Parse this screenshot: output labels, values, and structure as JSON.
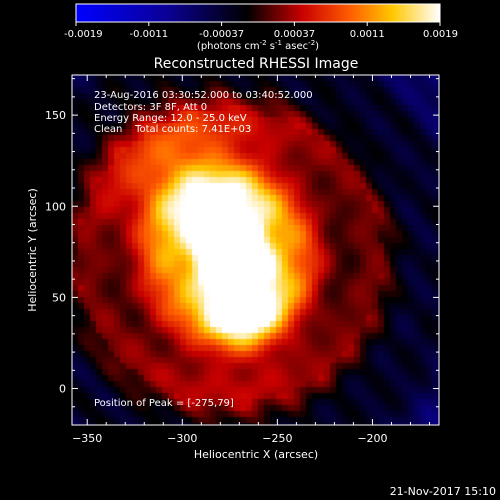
{
  "chart_data": {
    "type": "heatmap",
    "title": "Reconstructed RHESSI Image",
    "xlabel": "Heliocentric X (arcsec)",
    "ylabel": "Heliocentric Y (arcsec)",
    "xlim": [
      -358,
      -165
    ],
    "ylim": [
      -20,
      172
    ],
    "x_ticks": [
      -350,
      -300,
      -250,
      -200
    ],
    "y_ticks": [
      0,
      50,
      100,
      150
    ],
    "colorbar": {
      "ticks": [
        "-0.0019",
        "-0.0011",
        "-0.00037",
        "0.00037",
        "0.0011",
        "0.0019"
      ],
      "unit_label": "(photons cm",
      "unit_sup1": "-2",
      "unit_mid1": " s",
      "unit_sup2": "-1",
      "unit_mid2": " asec",
      "unit_sup3": "-2",
      "unit_end": ")",
      "min": -0.0019,
      "max": 0.0019
    },
    "annotations": {
      "time_range": "23-Aug-2016 03:30:52.000 to 03:40:52.000",
      "detectors": "Detectors: 3F 8F, Att 0",
      "energy_range": "Energy Range: 12.0 - 25.0 keV",
      "clean": "Clean    Total counts: 7.41E+03",
      "peak": "Position of Peak = [-275,79]"
    },
    "peak_position": [
      -275,
      79
    ],
    "footer_date": "21-Nov-2017 15:10"
  },
  "colors": {
    "background": "#000000",
    "text": "#ffffff",
    "colormap_low": "#0000ff",
    "colormap_mid": "#000000",
    "colormap_high": "#ffffff"
  }
}
